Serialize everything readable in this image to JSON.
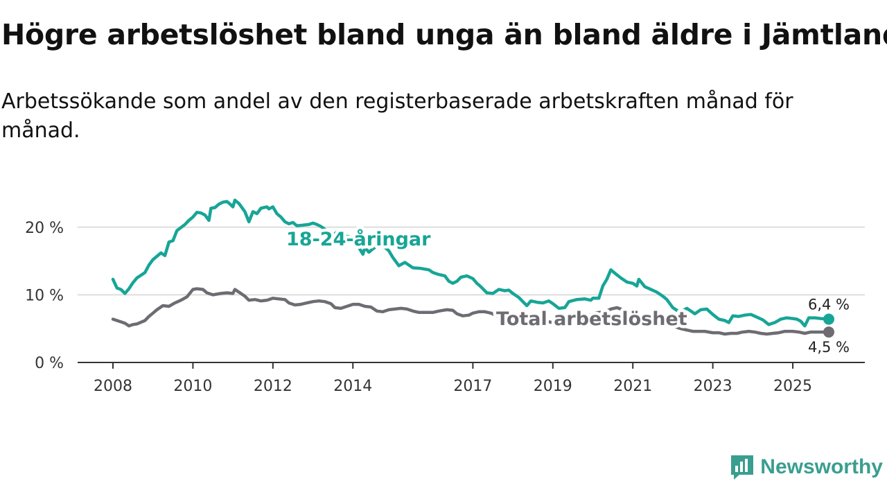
{
  "title": "Högre arbetslöshet bland unga än bland äldre i Jämtland",
  "subtitle": "Arbetssökande som andel av den registerbaserade arbetskraften månad för månad.",
  "brand": {
    "name": "Newsworthy"
  },
  "colors": {
    "young": "#17a596",
    "total": "#6e6c72",
    "grid": "#dddddd",
    "axis": "#333333"
  },
  "chart_data": {
    "type": "line",
    "title": "Högre arbetslöshet bland unga än bland äldre i Jämtland",
    "xlabel": "",
    "ylabel": "",
    "xlim": [
      2008,
      2025.9
    ],
    "ylim": [
      0,
      25
    ],
    "y_ticks": [
      0,
      10,
      20
    ],
    "y_tick_labels": [
      "0 %",
      "10 %",
      "20 %"
    ],
    "x_ticks": [
      2008,
      2010,
      2012,
      2014,
      2017,
      2019,
      2021,
      2023,
      2025
    ],
    "x_tick_labels": [
      "2008",
      "2010",
      "2012",
      "2014",
      "2017",
      "2019",
      "2021",
      "2023",
      "2025"
    ],
    "grid": true,
    "series": [
      {
        "name": "18-24-åringar",
        "label": "18-24-åringar",
        "end_label": "6,4 %",
        "points": [
          [
            2008.0,
            12.3
          ],
          [
            2008.1,
            11.0
          ],
          [
            2008.2,
            10.8
          ],
          [
            2008.3,
            10.2
          ],
          [
            2008.4,
            10.9
          ],
          [
            2008.5,
            11.8
          ],
          [
            2008.6,
            12.5
          ],
          [
            2008.8,
            13.3
          ],
          [
            2008.9,
            14.4
          ],
          [
            2009.0,
            15.2
          ],
          [
            2009.2,
            16.2
          ],
          [
            2009.3,
            15.8
          ],
          [
            2009.4,
            17.8
          ],
          [
            2009.5,
            18.0
          ],
          [
            2009.6,
            19.5
          ],
          [
            2009.8,
            20.4
          ],
          [
            2009.9,
            21.0
          ],
          [
            2010.0,
            21.5
          ],
          [
            2010.1,
            22.2
          ],
          [
            2010.2,
            22.1
          ],
          [
            2010.3,
            21.8
          ],
          [
            2010.4,
            21.0
          ],
          [
            2010.45,
            22.8
          ],
          [
            2010.55,
            22.9
          ],
          [
            2010.65,
            23.4
          ],
          [
            2010.75,
            23.7
          ],
          [
            2010.85,
            23.8
          ],
          [
            2010.95,
            23.3
          ],
          [
            2011.0,
            23.0
          ],
          [
            2011.05,
            24.0
          ],
          [
            2011.15,
            23.5
          ],
          [
            2011.3,
            22.3
          ],
          [
            2011.4,
            20.8
          ],
          [
            2011.5,
            22.3
          ],
          [
            2011.6,
            22.0
          ],
          [
            2011.7,
            22.8
          ],
          [
            2011.85,
            23.0
          ],
          [
            2011.9,
            22.7
          ],
          [
            2012.0,
            23.0
          ],
          [
            2012.1,
            22.0
          ],
          [
            2012.2,
            21.5
          ],
          [
            2012.3,
            20.8
          ],
          [
            2012.4,
            20.5
          ],
          [
            2012.5,
            20.7
          ],
          [
            2012.6,
            20.2
          ],
          [
            2012.75,
            20.3
          ],
          [
            2012.9,
            20.4
          ],
          [
            2013.0,
            20.6
          ],
          [
            2013.1,
            20.4
          ],
          [
            2013.2,
            20.1
          ],
          [
            2013.35,
            19.5
          ],
          [
            2013.5,
            18.8
          ],
          [
            2013.65,
            19.5
          ],
          [
            2013.8,
            18.7
          ],
          [
            2014.0,
            18.5
          ],
          [
            2014.1,
            17.5
          ],
          [
            2014.25,
            16.0
          ],
          [
            2014.3,
            17.0
          ],
          [
            2014.4,
            16.3
          ],
          [
            2014.5,
            16.8
          ],
          [
            2014.6,
            17.2
          ],
          [
            2014.75,
            17.3
          ],
          [
            2014.9,
            16.5
          ],
          [
            2015.0,
            15.5
          ],
          [
            2015.15,
            14.3
          ],
          [
            2015.3,
            14.8
          ],
          [
            2015.5,
            14.0
          ],
          [
            2015.7,
            13.9
          ],
          [
            2015.9,
            13.7
          ],
          [
            2016.0,
            13.3
          ],
          [
            2016.15,
            13.0
          ],
          [
            2016.3,
            12.8
          ],
          [
            2016.4,
            12.0
          ],
          [
            2016.5,
            11.7
          ],
          [
            2016.6,
            12.0
          ],
          [
            2016.7,
            12.6
          ],
          [
            2016.85,
            12.8
          ],
          [
            2017.0,
            12.4
          ],
          [
            2017.1,
            11.7
          ],
          [
            2017.2,
            11.2
          ],
          [
            2017.35,
            10.3
          ],
          [
            2017.5,
            10.2
          ],
          [
            2017.65,
            10.8
          ],
          [
            2017.8,
            10.6
          ],
          [
            2017.9,
            10.7
          ],
          [
            2018.0,
            10.2
          ],
          [
            2018.15,
            9.6
          ],
          [
            2018.25,
            9.0
          ],
          [
            2018.35,
            8.4
          ],
          [
            2018.45,
            9.1
          ],
          [
            2018.6,
            8.9
          ],
          [
            2018.75,
            8.8
          ],
          [
            2018.9,
            9.1
          ],
          [
            2019.0,
            8.7
          ],
          [
            2019.15,
            8.0
          ],
          [
            2019.3,
            8.1
          ],
          [
            2019.4,
            9.0
          ],
          [
            2019.6,
            9.3
          ],
          [
            2019.8,
            9.4
          ],
          [
            2019.95,
            9.2
          ],
          [
            2020.0,
            9.5
          ],
          [
            2020.15,
            9.5
          ],
          [
            2020.25,
            11.3
          ],
          [
            2020.35,
            12.3
          ],
          [
            2020.45,
            13.7
          ],
          [
            2020.55,
            13.2
          ],
          [
            2020.7,
            12.5
          ],
          [
            2020.85,
            11.9
          ],
          [
            2021.0,
            11.7
          ],
          [
            2021.1,
            11.3
          ],
          [
            2021.15,
            12.3
          ],
          [
            2021.3,
            11.2
          ],
          [
            2021.45,
            10.8
          ],
          [
            2021.6,
            10.4
          ],
          [
            2021.75,
            9.8
          ],
          [
            2021.85,
            9.3
          ],
          [
            2022.0,
            8.1
          ],
          [
            2022.1,
            7.7
          ],
          [
            2022.2,
            7.5
          ],
          [
            2022.35,
            8.0
          ],
          [
            2022.45,
            7.6
          ],
          [
            2022.55,
            7.2
          ],
          [
            2022.7,
            7.8
          ],
          [
            2022.85,
            7.9
          ],
          [
            2023.0,
            7.1
          ],
          [
            2023.15,
            6.4
          ],
          [
            2023.3,
            6.2
          ],
          [
            2023.4,
            5.9
          ],
          [
            2023.5,
            6.9
          ],
          [
            2023.65,
            6.8
          ],
          [
            2023.8,
            7.0
          ],
          [
            2023.95,
            7.1
          ],
          [
            2024.1,
            6.7
          ],
          [
            2024.25,
            6.3
          ],
          [
            2024.4,
            5.6
          ],
          [
            2024.55,
            5.9
          ],
          [
            2024.7,
            6.4
          ],
          [
            2024.85,
            6.6
          ],
          [
            2025.0,
            6.5
          ],
          [
            2025.1,
            6.4
          ],
          [
            2025.2,
            6.1
          ],
          [
            2025.3,
            5.4
          ],
          [
            2025.4,
            6.6
          ],
          [
            2025.55,
            6.6
          ],
          [
            2025.7,
            6.5
          ],
          [
            2025.9,
            6.4
          ]
        ]
      },
      {
        "name": "Total arbetslöshet",
        "label": "Total arbetslöshet",
        "end_label": "4,5 %",
        "points": [
          [
            2008.0,
            6.4
          ],
          [
            2008.1,
            6.2
          ],
          [
            2008.2,
            6.0
          ],
          [
            2008.3,
            5.8
          ],
          [
            2008.4,
            5.4
          ],
          [
            2008.5,
            5.6
          ],
          [
            2008.6,
            5.7
          ],
          [
            2008.8,
            6.2
          ],
          [
            2008.9,
            6.8
          ],
          [
            2009.0,
            7.3
          ],
          [
            2009.1,
            7.8
          ],
          [
            2009.25,
            8.4
          ],
          [
            2009.4,
            8.3
          ],
          [
            2009.55,
            8.8
          ],
          [
            2009.7,
            9.2
          ],
          [
            2009.85,
            9.7
          ],
          [
            2010.0,
            10.8
          ],
          [
            2010.1,
            10.9
          ],
          [
            2010.25,
            10.8
          ],
          [
            2010.35,
            10.3
          ],
          [
            2010.5,
            10.0
          ],
          [
            2010.7,
            10.2
          ],
          [
            2010.85,
            10.3
          ],
          [
            2011.0,
            10.2
          ],
          [
            2011.05,
            10.8
          ],
          [
            2011.15,
            10.4
          ],
          [
            2011.3,
            9.8
          ],
          [
            2011.4,
            9.2
          ],
          [
            2011.55,
            9.3
          ],
          [
            2011.7,
            9.1
          ],
          [
            2011.85,
            9.2
          ],
          [
            2012.0,
            9.5
          ],
          [
            2012.15,
            9.4
          ],
          [
            2012.3,
            9.3
          ],
          [
            2012.4,
            8.8
          ],
          [
            2012.55,
            8.5
          ],
          [
            2012.7,
            8.6
          ],
          [
            2012.85,
            8.8
          ],
          [
            2013.0,
            9.0
          ],
          [
            2013.15,
            9.1
          ],
          [
            2013.3,
            9.0
          ],
          [
            2013.45,
            8.7
          ],
          [
            2013.55,
            8.1
          ],
          [
            2013.7,
            8.0
          ],
          [
            2013.85,
            8.3
          ],
          [
            2014.0,
            8.6
          ],
          [
            2014.15,
            8.6
          ],
          [
            2014.3,
            8.3
          ],
          [
            2014.45,
            8.2
          ],
          [
            2014.6,
            7.6
          ],
          [
            2014.75,
            7.5
          ],
          [
            2014.9,
            7.8
          ],
          [
            2015.05,
            7.9
          ],
          [
            2015.2,
            8.0
          ],
          [
            2015.35,
            7.9
          ],
          [
            2015.5,
            7.6
          ],
          [
            2015.65,
            7.4
          ],
          [
            2015.8,
            7.4
          ],
          [
            2016.0,
            7.4
          ],
          [
            2016.15,
            7.6
          ],
          [
            2016.35,
            7.8
          ],
          [
            2016.5,
            7.7
          ],
          [
            2016.6,
            7.2
          ],
          [
            2016.75,
            6.9
          ],
          [
            2016.9,
            7.0
          ],
          [
            2017.0,
            7.3
          ],
          [
            2017.15,
            7.5
          ],
          [
            2017.3,
            7.5
          ],
          [
            2017.45,
            7.3
          ],
          [
            2017.6,
            6.9
          ],
          [
            2017.75,
            6.8
          ],
          [
            2017.9,
            6.7
          ],
          [
            2018.05,
            6.5
          ],
          [
            2018.2,
            6.3
          ],
          [
            2018.35,
            6.1
          ],
          [
            2018.5,
            6.0
          ],
          [
            2018.65,
            6.0
          ],
          [
            2018.8,
            6.1
          ],
          [
            2019.0,
            5.9
          ],
          [
            2019.15,
            5.9
          ],
          [
            2019.3,
            5.8
          ],
          [
            2019.5,
            6.1
          ],
          [
            2019.7,
            6.3
          ],
          [
            2019.85,
            6.8
          ],
          [
            2020.0,
            7.2
          ],
          [
            2020.15,
            7.4
          ],
          [
            2020.3,
            7.5
          ],
          [
            2020.45,
            7.9
          ],
          [
            2020.6,
            8.1
          ],
          [
            2020.75,
            7.8
          ],
          [
            2020.9,
            7.5
          ],
          [
            2021.0,
            7.4
          ],
          [
            2021.15,
            7.0
          ],
          [
            2021.3,
            6.8
          ],
          [
            2021.45,
            6.5
          ],
          [
            2021.6,
            6.2
          ],
          [
            2021.75,
            6.0
          ],
          [
            2021.9,
            5.7
          ],
          [
            2022.05,
            5.3
          ],
          [
            2022.2,
            5.0
          ],
          [
            2022.35,
            4.8
          ],
          [
            2022.5,
            4.6
          ],
          [
            2022.65,
            4.6
          ],
          [
            2022.8,
            4.6
          ],
          [
            2023.0,
            4.4
          ],
          [
            2023.15,
            4.4
          ],
          [
            2023.3,
            4.2
          ],
          [
            2023.45,
            4.3
          ],
          [
            2023.6,
            4.3
          ],
          [
            2023.75,
            4.5
          ],
          [
            2023.9,
            4.6
          ],
          [
            2024.05,
            4.5
          ],
          [
            2024.2,
            4.3
          ],
          [
            2024.35,
            4.2
          ],
          [
            2024.5,
            4.3
          ],
          [
            2024.65,
            4.4
          ],
          [
            2024.8,
            4.6
          ],
          [
            2025.0,
            4.6
          ],
          [
            2025.15,
            4.5
          ],
          [
            2025.3,
            4.3
          ],
          [
            2025.45,
            4.5
          ],
          [
            2025.6,
            4.5
          ],
          [
            2025.75,
            4.5
          ],
          [
            2025.9,
            4.5
          ]
        ]
      }
    ]
  }
}
